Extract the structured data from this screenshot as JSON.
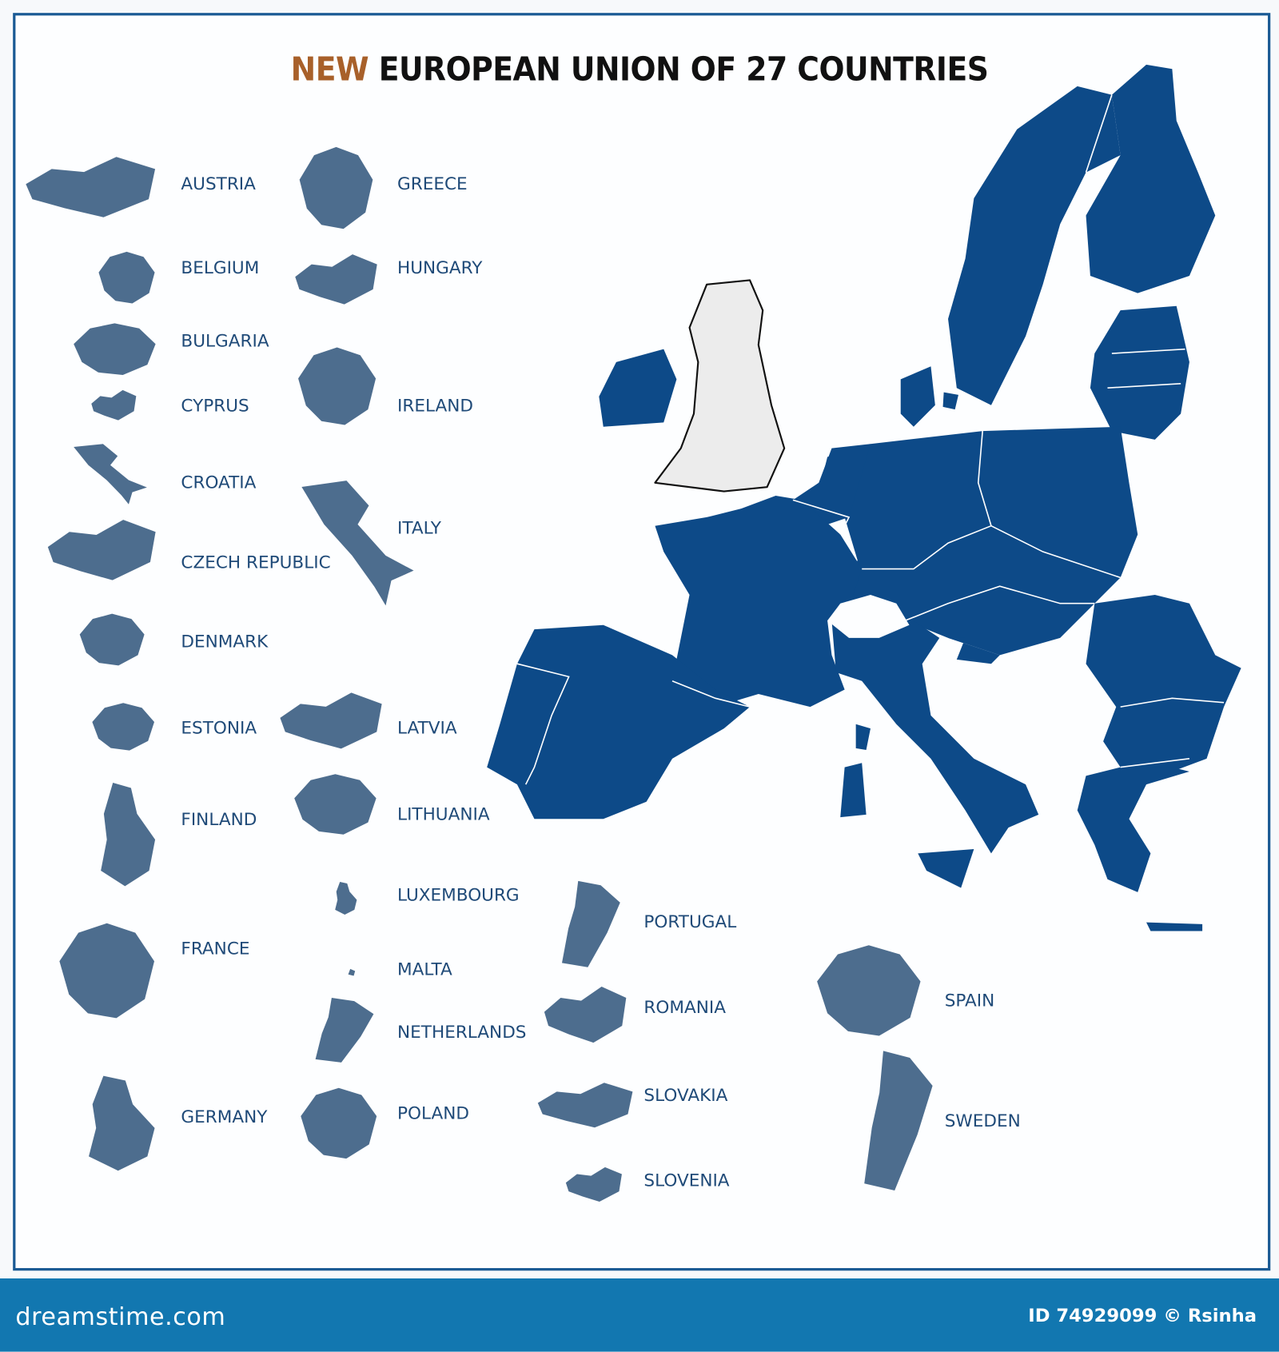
{
  "title": {
    "highlight": "NEW",
    "rest": "EUROPEAN UNION OF 27 COUNTRIES",
    "highlight_color": "#a8602a"
  },
  "colors": {
    "eu_fill": "#0d4a88",
    "silhouette_fill": "#4d6d8e",
    "uk_fill": "#ececec",
    "frame": "#1a5a94",
    "footer": "#1277b0"
  },
  "countries": [
    {
      "name": "AUSTRIA"
    },
    {
      "name": "BELGIUM"
    },
    {
      "name": "BULGARIA"
    },
    {
      "name": "CYPRUS"
    },
    {
      "name": "CROATIA"
    },
    {
      "name": "CZECH REPUBLIC"
    },
    {
      "name": "DENMARK"
    },
    {
      "name": "ESTONIA"
    },
    {
      "name": "FINLAND"
    },
    {
      "name": "FRANCE"
    },
    {
      "name": "GERMANY"
    },
    {
      "name": "GREECE"
    },
    {
      "name": "HUNGARY"
    },
    {
      "name": "IRELAND"
    },
    {
      "name": "ITALY"
    },
    {
      "name": "LATVIA"
    },
    {
      "name": "LITHUANIA"
    },
    {
      "name": "LUXEMBOURG"
    },
    {
      "name": "MALTA"
    },
    {
      "name": "NETHERLANDS"
    },
    {
      "name": "POLAND"
    },
    {
      "name": "PORTUGAL"
    },
    {
      "name": "ROMANIA"
    },
    {
      "name": "SLOVAKIA"
    },
    {
      "name": "SLOVENIA"
    },
    {
      "name": "SPAIN"
    },
    {
      "name": "SWEDEN"
    }
  ],
  "footer": {
    "logo": "dreamstime.com",
    "credit": "ID 74929099 © Rsinha"
  }
}
